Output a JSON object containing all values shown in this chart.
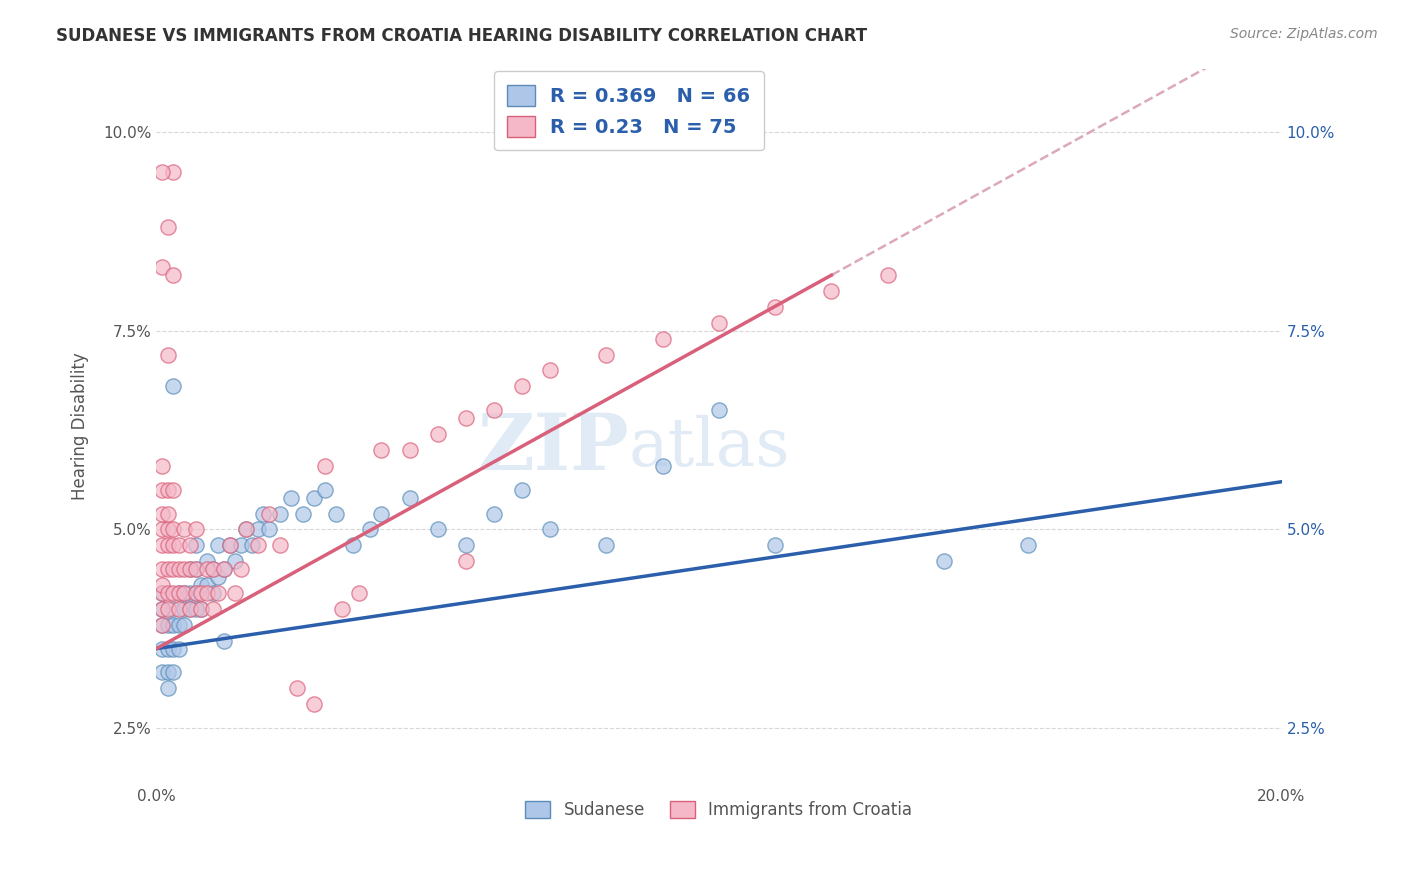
{
  "title": "SUDANESE VS IMMIGRANTS FROM CROATIA HEARING DISABILITY CORRELATION CHART",
  "source_text": "Source: ZipAtlas.com",
  "ylabel": "Hearing Disability",
  "xlim": [
    0.0,
    0.2
  ],
  "ylim": [
    0.018,
    0.108
  ],
  "xticks": [
    0.0,
    0.05,
    0.1,
    0.15,
    0.2
  ],
  "xticklabels": [
    "0.0%",
    "",
    "",
    "",
    "20.0%"
  ],
  "yticks_left": [
    0.025,
    0.05,
    0.075,
    0.1
  ],
  "yticklabels_left": [
    "2.5%",
    "5.0%",
    "7.5%",
    "10.0%"
  ],
  "yticks_right": [
    0.025,
    0.05,
    0.075,
    0.1
  ],
  "yticklabels_right": [
    "2.5%",
    "5.0%",
    "7.5%",
    "10.0%"
  ],
  "series1_color": "#aec6e8",
  "series1_edge": "#5b8db8",
  "series1_line_color": "#2b5fac",
  "series2_color": "#f4b8c8",
  "series2_edge": "#d9607a",
  "series2_line_color": "#d9607a",
  "dashed_line_color": "#d9a0b0",
  "R1": 0.369,
  "N1": 66,
  "R2": 0.23,
  "N2": 75,
  "legend_label1": "Sudanese",
  "legend_label2": "Immigrants from Croatia",
  "watermark_zip": "ZIP",
  "watermark_atlas": "atlas",
  "background_color": "#ffffff",
  "grid_color": "#d8d8d8",
  "tick_color": "#555555",
  "right_tick_color": "#2b5fac",
  "title_color": "#333333",
  "sudanese_x": [
    0.001,
    0.001,
    0.001,
    0.001,
    0.001,
    0.002,
    0.002,
    0.002,
    0.002,
    0.003,
    0.003,
    0.003,
    0.003,
    0.004,
    0.004,
    0.004,
    0.005,
    0.005,
    0.005,
    0.006,
    0.006,
    0.006,
    0.007,
    0.007,
    0.007,
    0.008,
    0.008,
    0.009,
    0.009,
    0.01,
    0.01,
    0.011,
    0.011,
    0.012,
    0.013,
    0.014,
    0.015,
    0.016,
    0.017,
    0.018,
    0.019,
    0.02,
    0.022,
    0.024,
    0.026,
    0.028,
    0.03,
    0.032,
    0.035,
    0.038,
    0.04,
    0.045,
    0.05,
    0.055,
    0.06,
    0.065,
    0.07,
    0.08,
    0.09,
    0.1,
    0.11,
    0.14,
    0.155,
    0.003,
    0.007,
    0.012
  ],
  "sudanese_y": [
    0.032,
    0.035,
    0.038,
    0.04,
    0.042,
    0.03,
    0.032,
    0.035,
    0.038,
    0.032,
    0.035,
    0.038,
    0.04,
    0.035,
    0.038,
    0.042,
    0.038,
    0.04,
    0.042,
    0.04,
    0.042,
    0.045,
    0.042,
    0.045,
    0.048,
    0.04,
    0.043,
    0.043,
    0.046,
    0.042,
    0.045,
    0.044,
    0.048,
    0.045,
    0.048,
    0.046,
    0.048,
    0.05,
    0.048,
    0.05,
    0.052,
    0.05,
    0.052,
    0.054,
    0.052,
    0.054,
    0.055,
    0.052,
    0.048,
    0.05,
    0.052,
    0.054,
    0.05,
    0.048,
    0.052,
    0.055,
    0.05,
    0.048,
    0.058,
    0.065,
    0.048,
    0.046,
    0.048,
    0.068,
    0.04,
    0.036
  ],
  "croatia_x": [
    0.001,
    0.001,
    0.001,
    0.001,
    0.001,
    0.001,
    0.001,
    0.001,
    0.001,
    0.001,
    0.002,
    0.002,
    0.002,
    0.002,
    0.002,
    0.002,
    0.002,
    0.003,
    0.003,
    0.003,
    0.003,
    0.003,
    0.004,
    0.004,
    0.004,
    0.004,
    0.005,
    0.005,
    0.005,
    0.006,
    0.006,
    0.006,
    0.007,
    0.007,
    0.007,
    0.008,
    0.008,
    0.009,
    0.009,
    0.01,
    0.01,
    0.011,
    0.012,
    0.013,
    0.014,
    0.015,
    0.016,
    0.018,
    0.02,
    0.022,
    0.025,
    0.028,
    0.03,
    0.033,
    0.036,
    0.04,
    0.045,
    0.05,
    0.055,
    0.06,
    0.065,
    0.07,
    0.08,
    0.09,
    0.1,
    0.11,
    0.12,
    0.13,
    0.001,
    0.002,
    0.003,
    0.003,
    0.002,
    0.001,
    0.055
  ],
  "croatia_y": [
    0.038,
    0.04,
    0.042,
    0.043,
    0.045,
    0.048,
    0.05,
    0.052,
    0.055,
    0.058,
    0.04,
    0.042,
    0.045,
    0.048,
    0.05,
    0.052,
    0.055,
    0.042,
    0.045,
    0.048,
    0.05,
    0.055,
    0.04,
    0.042,
    0.045,
    0.048,
    0.042,
    0.045,
    0.05,
    0.04,
    0.045,
    0.048,
    0.042,
    0.045,
    0.05,
    0.04,
    0.042,
    0.042,
    0.045,
    0.04,
    0.045,
    0.042,
    0.045,
    0.048,
    0.042,
    0.045,
    0.05,
    0.048,
    0.052,
    0.048,
    0.03,
    0.028,
    0.058,
    0.04,
    0.042,
    0.06,
    0.06,
    0.062,
    0.064,
    0.065,
    0.068,
    0.07,
    0.072,
    0.074,
    0.076,
    0.078,
    0.08,
    0.082,
    0.083,
    0.088,
    0.095,
    0.082,
    0.072,
    0.095,
    0.046
  ]
}
